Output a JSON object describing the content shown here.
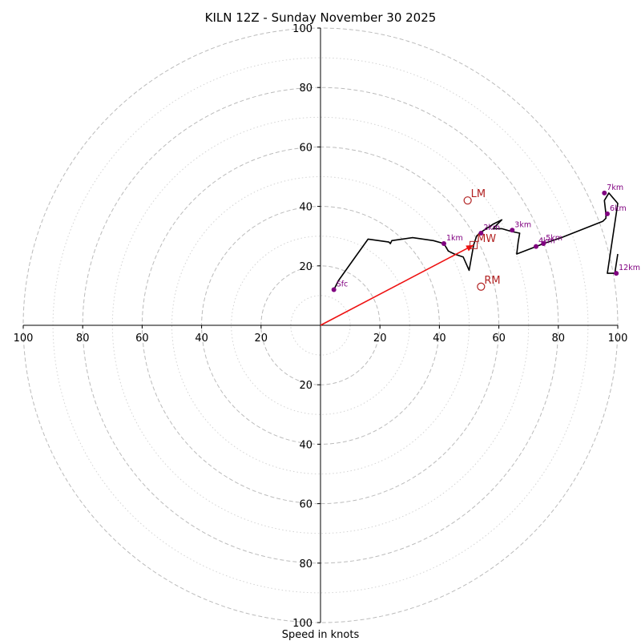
{
  "chart_data": {
    "type": "hodograph",
    "title": "KILN 12Z - Sunday November 30 2025",
    "xlabel": "Speed in knots",
    "units": "knots",
    "range": [
      -100,
      100
    ],
    "major_rings": [
      20,
      40,
      60,
      80,
      100
    ],
    "minor_rings": [
      10,
      30,
      50,
      70,
      90
    ],
    "x_tick_labels": [
      "100",
      "80",
      "60",
      "40",
      "20",
      "20",
      "40",
      "60",
      "80",
      "100"
    ],
    "x_tick_values": [
      -100,
      -80,
      -60,
      -40,
      -20,
      20,
      40,
      60,
      80,
      100
    ],
    "y_tick_labels": [
      "100",
      "80",
      "60",
      "40",
      "20",
      "20",
      "40",
      "60",
      "80",
      "100"
    ],
    "y_tick_values": [
      100,
      80,
      60,
      40,
      20,
      -20,
      -40,
      -60,
      -80,
      -100
    ],
    "wind_profile": {
      "u": [
        4.5,
        6,
        11,
        16,
        23,
        23.5,
        24,
        31,
        38,
        41.5,
        43,
        45,
        48,
        50,
        51.5,
        52.5,
        53.5,
        55,
        58,
        61,
        58,
        61,
        64.5,
        67,
        66.5,
        66,
        72.5,
        75,
        81,
        95,
        96,
        96,
        95.5,
        97,
        100,
        96.5,
        99,
        100
      ],
      "v": [
        12,
        15,
        22,
        29,
        28,
        27.5,
        28.5,
        29.5,
        28.5,
        27.5,
        25,
        24,
        23,
        18.5,
        27,
        30,
        31,
        32,
        34,
        35.5,
        32.5,
        32.5,
        31.5,
        31,
        28,
        24,
        26.5,
        27.5,
        29.5,
        35,
        36,
        37.5,
        42,
        44.5,
        41,
        17.5,
        17.5,
        24
      ]
    },
    "height_labels": [
      {
        "label": "Sfc",
        "u": 4.5,
        "v": 12
      },
      {
        "label": "1km",
        "u": 41.5,
        "v": 27.5
      },
      {
        "label": "2km",
        "u": 54,
        "v": 31
      },
      {
        "label": "3km",
        "u": 64.5,
        "v": 32
      },
      {
        "label": "4km",
        "u": 72.5,
        "v": 26.5
      },
      {
        "label": "5km",
        "u": 75,
        "v": 27.5
      },
      {
        "label": "6km",
        "u": 96.5,
        "v": 37.5
      },
      {
        "label": "7km",
        "u": 95.5,
        "v": 44.5
      },
      {
        "label": "12km",
        "u": 99.5,
        "v": 17.5
      }
    ],
    "storm_motion": [
      {
        "label": "LM",
        "u": 49.5,
        "v": 42
      },
      {
        "label": "MW",
        "u": 51.5,
        "v": 27
      },
      {
        "label": "RM",
        "u": 54,
        "v": 13
      }
    ],
    "shear_vector": {
      "u0": 0,
      "v0": 0,
      "u1": 51.5,
      "v1": 27
    },
    "colors": {
      "profile": "#000000",
      "height_dot": "#800080",
      "storm_motion": "#b22222",
      "shear_vector": "#ee1111",
      "major_ring": "#bbbbbb",
      "minor_ring": "#d3d3d3"
    }
  }
}
